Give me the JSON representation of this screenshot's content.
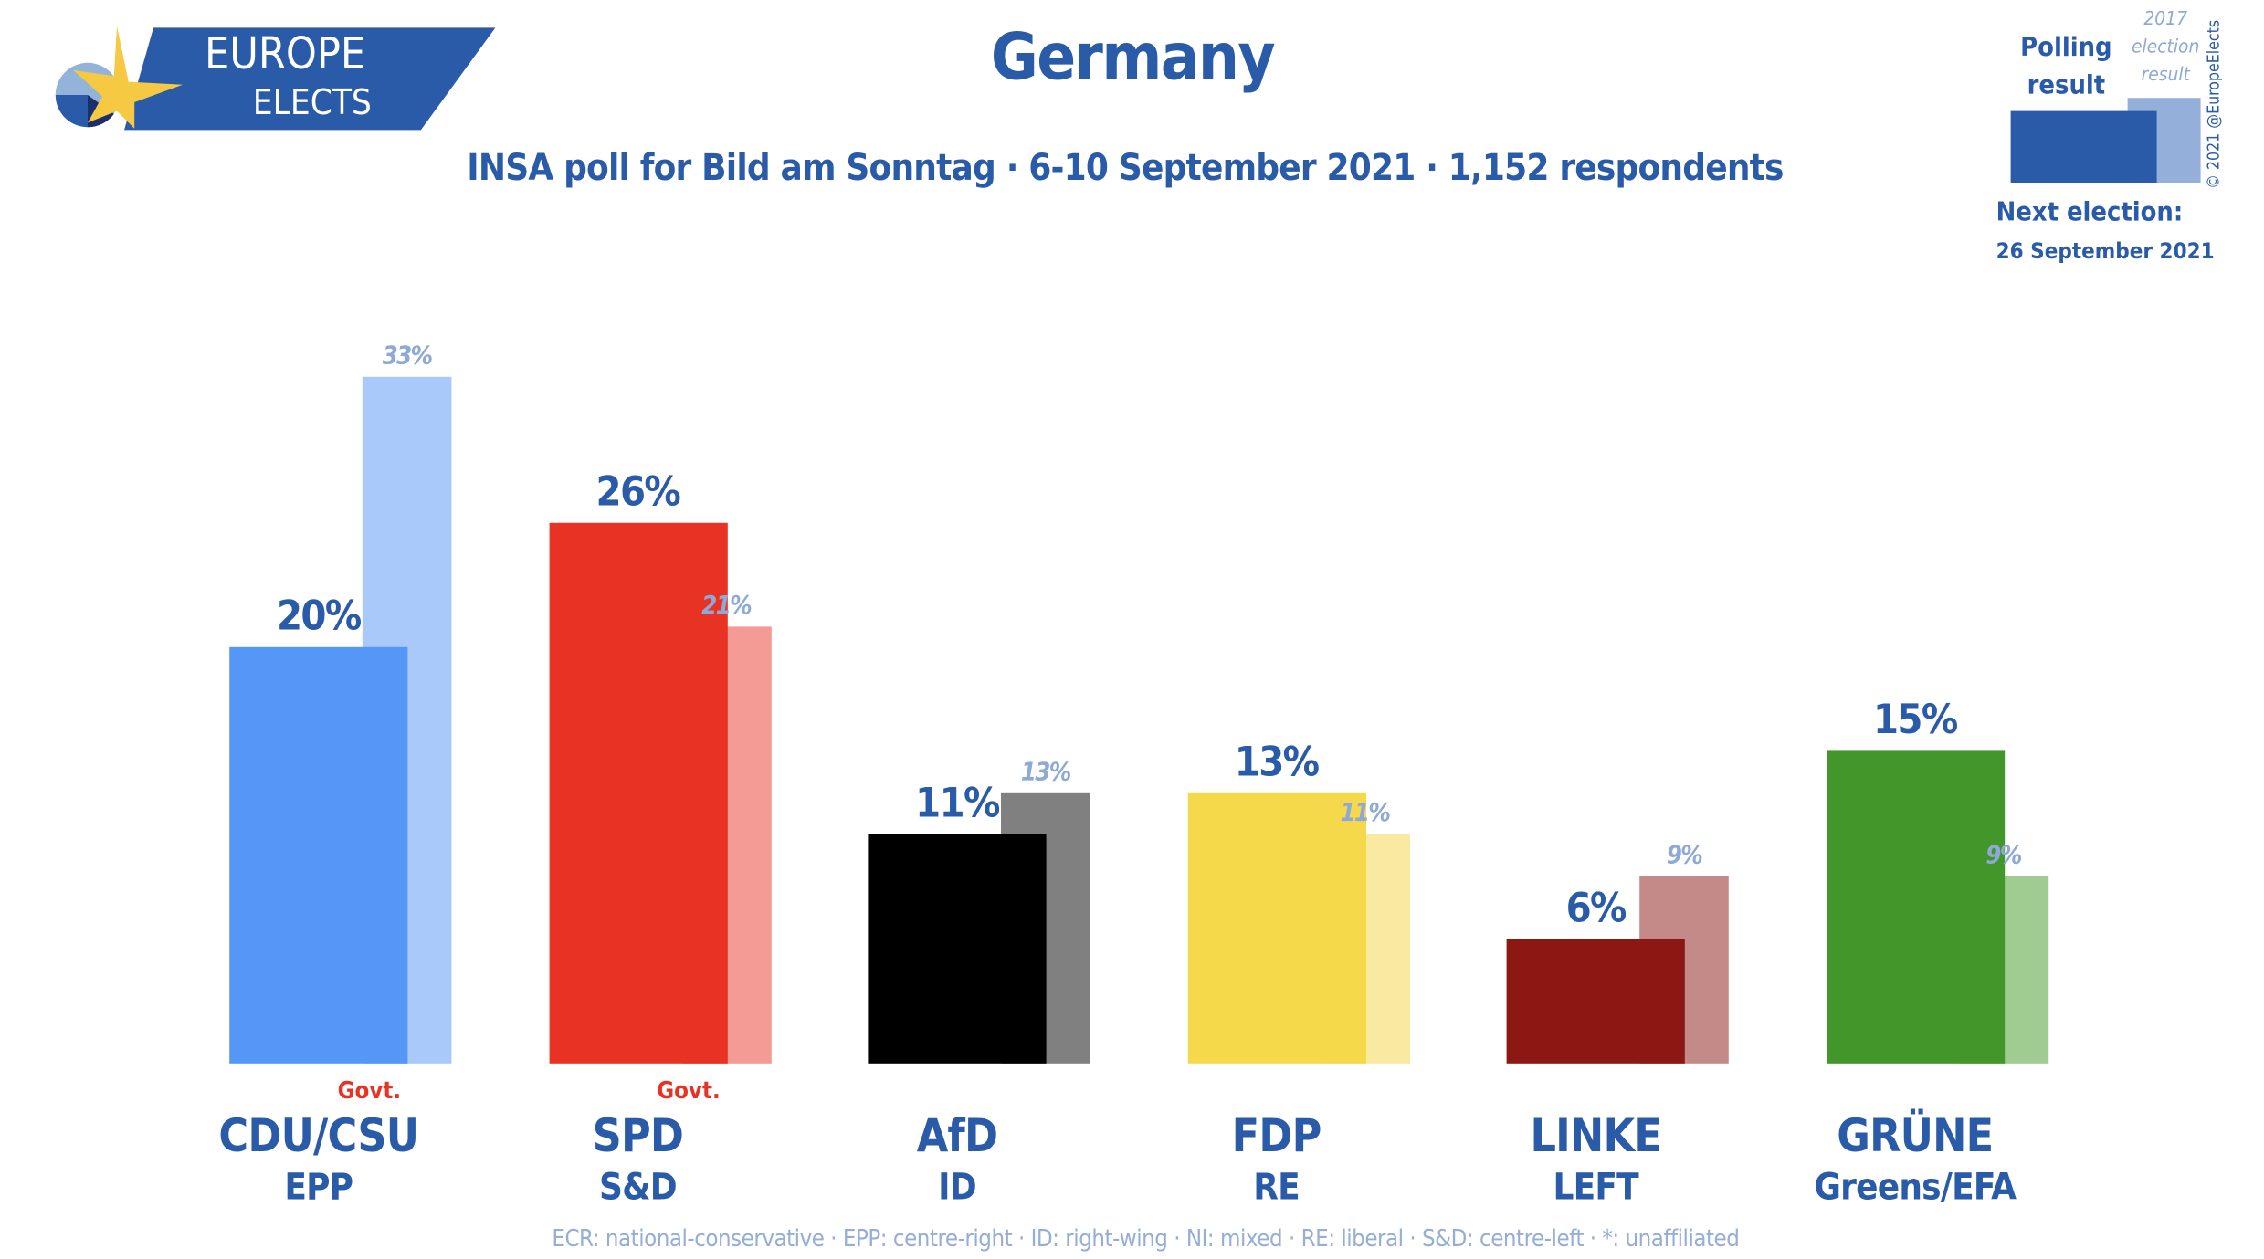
{
  "logo": {
    "line1": "EUROPE",
    "line2": "ELECTS"
  },
  "header": {
    "title": "Germany",
    "subtitle": "INSA poll for Bild am Sonntag · 6-10 September 2021 · 1,152 respondents"
  },
  "legend": {
    "poll_label": "Polling result",
    "prev_label": "2017 election result",
    "copyright": "© 2021 @EuropeElects",
    "next_election_label": "Next election:",
    "next_election_date": "26 September 2021"
  },
  "footer": "ECR: national-conservative · EPP: centre-right · ID: right-wing · NI: mixed · RE: liberal · S&D: centre-left · *: unaffiliated",
  "govt_label": "Govt.",
  "chart_data": {
    "type": "bar",
    "categories": [
      "CDU/CSU",
      "SPD",
      "AfD",
      "FDP",
      "LINKE",
      "GRÜNE"
    ],
    "groups": [
      "EPP",
      "S&D",
      "ID",
      "RE",
      "LEFT",
      "Greens/EFA"
    ],
    "government": [
      true,
      true,
      false,
      false,
      false,
      false
    ],
    "series": [
      {
        "name": "Polling result",
        "values": [
          20,
          26,
          11,
          13,
          6,
          15
        ],
        "labels": [
          "20%",
          "26%",
          "11%",
          "13%",
          "6%",
          "15%"
        ],
        "colors": [
          "#5497f7",
          "#e83324",
          "#000000",
          "#f6d84b",
          "#8b1812",
          "#43962a"
        ]
      },
      {
        "name": "2017 election result",
        "values": [
          33,
          21,
          13,
          11,
          9,
          9
        ],
        "labels": [
          "33%",
          "21%",
          "13%",
          "11%",
          "9%",
          "9%"
        ],
        "colors": [
          "#a9c9fb",
          "#f39b94",
          "#808080",
          "#fae9a1",
          "#c48a87",
          "#a0cb91"
        ]
      }
    ],
    "ylim": [
      0,
      33
    ]
  }
}
